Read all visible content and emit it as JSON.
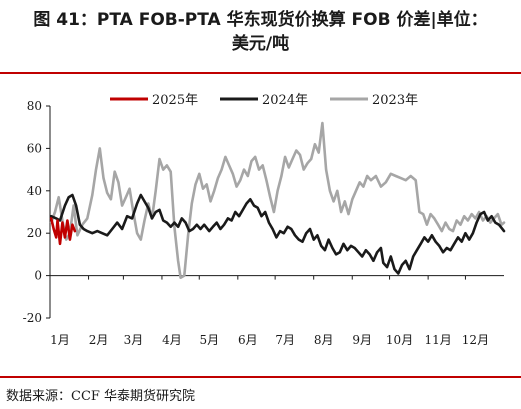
{
  "header": {
    "title_line1": "图 41：PTA FOB-PTA 华东现货价换算 FOB 价差|单位：",
    "title_line2": "美元/吨"
  },
  "footer": {
    "source": "数据来源：CCF  华泰期货研究院"
  },
  "chart_data": {
    "type": "line",
    "title": "",
    "xlabel": "",
    "ylabel": "",
    "x_ticks": [
      "1月",
      "2月",
      "3月",
      "4月",
      "5月",
      "6月",
      "7月",
      "8月",
      "9月",
      "10月",
      "11月",
      "12月"
    ],
    "x_unit": "day_of_year",
    "xlim": [
      0,
      365
    ],
    "ylim": [
      -20,
      80
    ],
    "y_ticks": [
      -20,
      0,
      20,
      40,
      60,
      80
    ],
    "grid": false,
    "legend_position": "top",
    "series": [
      {
        "name": "2025年",
        "color": "#c00000",
        "points": [
          [
            1,
            27
          ],
          [
            3,
            22
          ],
          [
            5,
            18
          ],
          [
            6,
            26
          ],
          [
            8,
            15
          ],
          [
            10,
            25
          ],
          [
            12,
            18
          ],
          [
            14,
            26
          ],
          [
            16,
            17
          ],
          [
            18,
            24
          ],
          [
            20,
            21
          ]
        ]
      },
      {
        "name": "2024年",
        "color": "#1a1a1a",
        "points": [
          [
            1,
            28
          ],
          [
            5,
            27
          ],
          [
            8,
            26
          ],
          [
            12,
            33
          ],
          [
            15,
            37
          ],
          [
            18,
            38
          ],
          [
            21,
            33
          ],
          [
            24,
            24
          ],
          [
            27,
            22
          ],
          [
            30,
            21
          ],
          [
            34,
            20
          ],
          [
            38,
            21
          ],
          [
            42,
            20
          ],
          [
            46,
            19
          ],
          [
            50,
            22
          ],
          [
            54,
            25
          ],
          [
            58,
            22
          ],
          [
            62,
            28
          ],
          [
            66,
            27
          ],
          [
            70,
            34
          ],
          [
            73,
            38
          ],
          [
            76,
            35
          ],
          [
            79,
            32
          ],
          [
            82,
            27
          ],
          [
            85,
            30
          ],
          [
            88,
            31
          ],
          [
            91,
            26
          ],
          [
            94,
            25
          ],
          [
            97,
            23
          ],
          [
            100,
            25
          ],
          [
            103,
            23
          ],
          [
            106,
            27
          ],
          [
            109,
            25
          ],
          [
            112,
            21
          ],
          [
            115,
            22
          ],
          [
            118,
            24
          ],
          [
            121,
            22
          ],
          [
            124,
            24
          ],
          [
            128,
            21
          ],
          [
            131,
            23
          ],
          [
            134,
            25
          ],
          [
            137,
            22
          ],
          [
            140,
            24
          ],
          [
            143,
            27
          ],
          [
            146,
            26
          ],
          [
            149,
            30
          ],
          [
            152,
            28
          ],
          [
            155,
            31
          ],
          [
            158,
            34
          ],
          [
            161,
            36
          ],
          [
            164,
            33
          ],
          [
            167,
            32
          ],
          [
            170,
            28
          ],
          [
            173,
            30
          ],
          [
            176,
            25
          ],
          [
            179,
            22
          ],
          [
            182,
            18
          ],
          [
            185,
            21
          ],
          [
            188,
            20
          ],
          [
            191,
            23
          ],
          [
            194,
            22
          ],
          [
            197,
            19
          ],
          [
            200,
            17
          ],
          [
            203,
            16
          ],
          [
            206,
            20
          ],
          [
            209,
            22
          ],
          [
            212,
            17
          ],
          [
            215,
            19
          ],
          [
            218,
            14
          ],
          [
            221,
            12
          ],
          [
            224,
            17
          ],
          [
            227,
            13
          ],
          [
            230,
            10
          ],
          [
            233,
            11
          ],
          [
            236,
            15
          ],
          [
            239,
            12
          ],
          [
            242,
            14
          ],
          [
            245,
            13
          ],
          [
            248,
            11
          ],
          [
            251,
            9
          ],
          [
            254,
            12
          ],
          [
            257,
            10
          ],
          [
            260,
            7
          ],
          [
            263,
            11
          ],
          [
            266,
            13
          ],
          [
            268,
            6
          ],
          [
            271,
            4
          ],
          [
            274,
            9
          ],
          [
            277,
            3
          ],
          [
            280,
            1
          ],
          [
            283,
            5
          ],
          [
            286,
            7
          ],
          [
            289,
            3
          ],
          [
            292,
            9
          ],
          [
            295,
            12
          ],
          [
            298,
            15
          ],
          [
            301,
            18
          ],
          [
            304,
            16
          ],
          [
            307,
            19
          ],
          [
            310,
            16
          ],
          [
            313,
            14
          ],
          [
            316,
            11
          ],
          [
            319,
            13
          ],
          [
            322,
            12
          ],
          [
            325,
            15
          ],
          [
            328,
            18
          ],
          [
            331,
            16
          ],
          [
            334,
            20
          ],
          [
            337,
            17
          ],
          [
            340,
            20
          ],
          [
            343,
            25
          ],
          [
            346,
            29
          ],
          [
            349,
            30
          ],
          [
            352,
            26
          ],
          [
            355,
            28
          ],
          [
            358,
            25
          ],
          [
            361,
            24
          ],
          [
            365,
            21
          ]
        ]
      },
      {
        "name": "2023年",
        "color": "#a6a6a6",
        "points": [
          [
            1,
            25
          ],
          [
            4,
            30
          ],
          [
            7,
            37
          ],
          [
            10,
            26
          ],
          [
            13,
            17
          ],
          [
            16,
            20
          ],
          [
            19,
            33
          ],
          [
            22,
            19
          ],
          [
            26,
            24
          ],
          [
            30,
            27
          ],
          [
            34,
            38
          ],
          [
            37,
            50
          ],
          [
            40,
            60
          ],
          [
            43,
            46
          ],
          [
            46,
            39
          ],
          [
            49,
            36
          ],
          [
            52,
            49
          ],
          [
            55,
            44
          ],
          [
            58,
            33
          ],
          [
            61,
            37
          ],
          [
            64,
            41
          ],
          [
            67,
            30
          ],
          [
            70,
            20
          ],
          [
            73,
            17
          ],
          [
            76,
            26
          ],
          [
            79,
            34
          ],
          [
            82,
            27
          ],
          [
            85,
            40
          ],
          [
            88,
            55
          ],
          [
            91,
            50
          ],
          [
            94,
            52
          ],
          [
            97,
            49
          ],
          [
            100,
            23
          ],
          [
            103,
            7
          ],
          [
            105,
            -1
          ],
          [
            108,
            0
          ],
          [
            111,
            19
          ],
          [
            114,
            34
          ],
          [
            117,
            43
          ],
          [
            120,
            48
          ],
          [
            123,
            41
          ],
          [
            126,
            43
          ],
          [
            129,
            35
          ],
          [
            132,
            40
          ],
          [
            135,
            46
          ],
          [
            138,
            50
          ],
          [
            141,
            56
          ],
          [
            144,
            52
          ],
          [
            147,
            48
          ],
          [
            150,
            42
          ],
          [
            153,
            45
          ],
          [
            156,
            50
          ],
          [
            159,
            47
          ],
          [
            162,
            54
          ],
          [
            165,
            56
          ],
          [
            168,
            50
          ],
          [
            171,
            52
          ],
          [
            174,
            45
          ],
          [
            177,
            37
          ],
          [
            180,
            30
          ],
          [
            183,
            40
          ],
          [
            186,
            47
          ],
          [
            189,
            56
          ],
          [
            192,
            51
          ],
          [
            195,
            55
          ],
          [
            198,
            59
          ],
          [
            201,
            57
          ],
          [
            204,
            50
          ],
          [
            207,
            53
          ],
          [
            210,
            55
          ],
          [
            213,
            62
          ],
          [
            216,
            58
          ],
          [
            219,
            72
          ],
          [
            222,
            50
          ],
          [
            225,
            40
          ],
          [
            228,
            35
          ],
          [
            231,
            40
          ],
          [
            234,
            30
          ],
          [
            237,
            35
          ],
          [
            240,
            29
          ],
          [
            243,
            36
          ],
          [
            246,
            40
          ],
          [
            249,
            44
          ],
          [
            252,
            42
          ],
          [
            255,
            47
          ],
          [
            258,
            45
          ],
          [
            262,
            47
          ],
          [
            266,
            42
          ],
          [
            270,
            44
          ],
          [
            274,
            48
          ],
          [
            278,
            47
          ],
          [
            282,
            46
          ],
          [
            286,
            45
          ],
          [
            290,
            47
          ],
          [
            294,
            45
          ],
          [
            297,
            30
          ],
          [
            300,
            29
          ],
          [
            303,
            24
          ],
          [
            306,
            29
          ],
          [
            309,
            27
          ],
          [
            312,
            24
          ],
          [
            315,
            21
          ],
          [
            318,
            25
          ],
          [
            321,
            22
          ],
          [
            324,
            21
          ],
          [
            327,
            26
          ],
          [
            330,
            24
          ],
          [
            333,
            28
          ],
          [
            336,
            26
          ],
          [
            339,
            29
          ],
          [
            342,
            27
          ],
          [
            345,
            30
          ],
          [
            348,
            26
          ],
          [
            351,
            28
          ],
          [
            354,
            25
          ],
          [
            357,
            27
          ],
          [
            360,
            29
          ],
          [
            363,
            24
          ],
          [
            365,
            25
          ]
        ]
      }
    ]
  }
}
